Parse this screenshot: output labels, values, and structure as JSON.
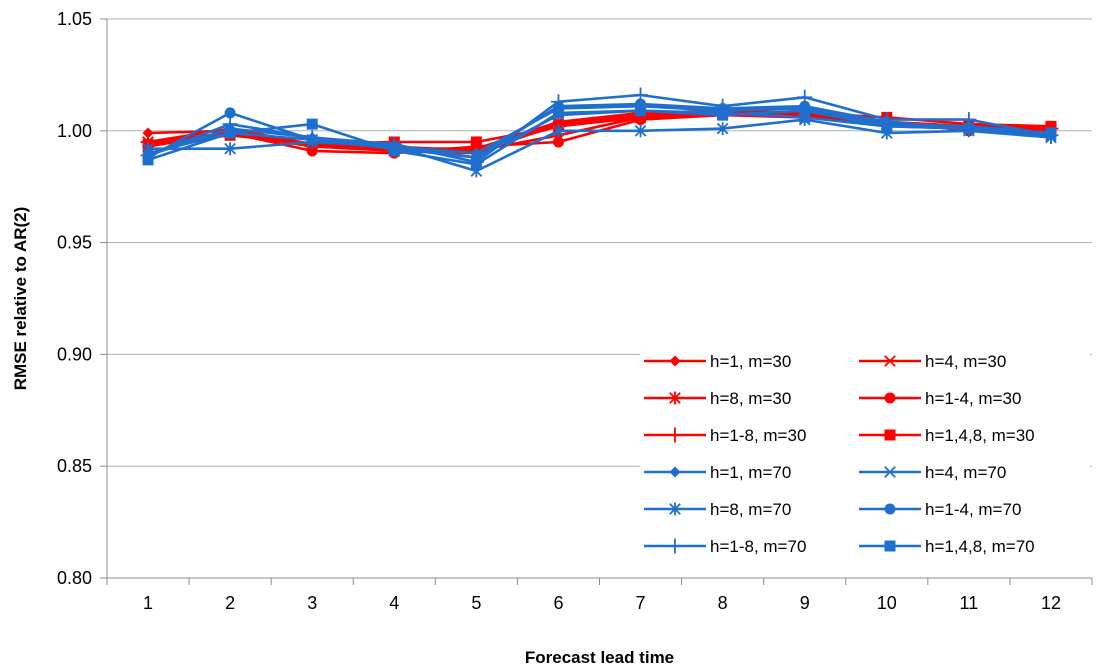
{
  "chart_data": {
    "type": "line",
    "title": "",
    "xlabel": "Forecast lead time",
    "ylabel": "RMSE relative to AR(2)",
    "ylim": [
      0.8,
      1.05
    ],
    "yticks": [
      "0.80",
      "0.85",
      "0.90",
      "0.95",
      "1.00",
      "1.05"
    ],
    "ytick_values": [
      0.8,
      0.85,
      0.9,
      0.95,
      1.0,
      1.05
    ],
    "categories": [
      "1",
      "2",
      "3",
      "4",
      "5",
      "6",
      "7",
      "8",
      "9",
      "10",
      "11",
      "12"
    ],
    "grid": "horizontal",
    "legend_position": "bottom-right",
    "colors": {
      "m30": "#ff0000",
      "m70": "#1f6fcf",
      "gridline": "#b0b0b0",
      "axis": "#8c8c8c"
    },
    "series": [
      {
        "name": "h=1, m=30",
        "color": "#ff0000",
        "marker": "diamond",
        "values": [
          0.999,
          1.0,
          0.993,
          0.993,
          0.991,
          0.998,
          1.006,
          1.008,
          1.007,
          1.003,
          1.002,
          1.0
        ]
      },
      {
        "name": "h=4, m=30",
        "color": "#ff0000",
        "marker": "x",
        "values": [
          0.993,
          0.999,
          0.993,
          0.991,
          0.99,
          1.003,
          1.007,
          1.009,
          1.008,
          1.004,
          1.001,
          1.0
        ]
      },
      {
        "name": "h=8, m=30",
        "color": "#ff0000",
        "marker": "star",
        "values": [
          0.995,
          1.001,
          0.994,
          0.992,
          0.992,
          1.004,
          1.008,
          1.009,
          1.008,
          1.004,
          1.002,
          1.001
        ]
      },
      {
        "name": "h=1-4, m=30",
        "color": "#ff0000",
        "marker": "circle",
        "values": [
          0.994,
          0.999,
          0.991,
          0.99,
          0.993,
          0.995,
          1.005,
          1.007,
          1.006,
          1.004,
          1.0,
          1.001
        ]
      },
      {
        "name": "h=1-8, m=30",
        "color": "#ff0000",
        "marker": "plus",
        "values": [
          0.995,
          0.999,
          0.993,
          0.992,
          0.992,
          1.002,
          1.007,
          1.008,
          1.007,
          1.004,
          1.002,
          1.001
        ]
      },
      {
        "name": "h=1,4,8, m=30",
        "color": "#ff0000",
        "marker": "square",
        "values": [
          0.994,
          0.998,
          0.994,
          0.995,
          0.995,
          1.002,
          1.006,
          1.008,
          1.008,
          1.006,
          1.003,
          1.002
        ]
      },
      {
        "name": "h=1, m=70",
        "color": "#1f6fcf",
        "marker": "diamond",
        "values": [
          0.989,
          1.001,
          0.997,
          0.993,
          0.99,
          1.01,
          1.011,
          1.009,
          1.01,
          1.003,
          1.002,
          0.999
        ]
      },
      {
        "name": "h=4, m=70",
        "color": "#1f6fcf",
        "marker": "x",
        "values": [
          0.99,
          0.999,
          0.996,
          0.992,
          0.988,
          1.007,
          1.009,
          1.008,
          1.006,
          1.002,
          1.001,
          0.998
        ]
      },
      {
        "name": "h=8, m=70",
        "color": "#1f6fcf",
        "marker": "star",
        "values": [
          0.992,
          0.992,
          0.995,
          0.993,
          0.982,
          1.0,
          1.0,
          1.001,
          1.005,
          0.999,
          1.0,
          0.997
        ]
      },
      {
        "name": "h=1-4, m=70",
        "color": "#1f6fcf",
        "marker": "circle",
        "values": [
          0.988,
          1.008,
          0.996,
          0.993,
          0.988,
          1.011,
          1.012,
          1.01,
          1.011,
          1.004,
          1.001,
          0.999
        ]
      },
      {
        "name": "h=1-8, m=70",
        "color": "#1f6fcf",
        "marker": "plus",
        "values": [
          0.989,
          1.003,
          0.997,
          0.994,
          0.986,
          1.013,
          1.016,
          1.011,
          1.015,
          1.005,
          1.005,
          0.998
        ]
      },
      {
        "name": "h=1,4,8, m=70",
        "color": "#1f6fcf",
        "marker": "square",
        "values": [
          0.987,
          0.999,
          1.003,
          0.991,
          0.985,
          1.008,
          1.009,
          1.007,
          1.009,
          1.002,
          1.001,
          0.999
        ]
      }
    ]
  }
}
